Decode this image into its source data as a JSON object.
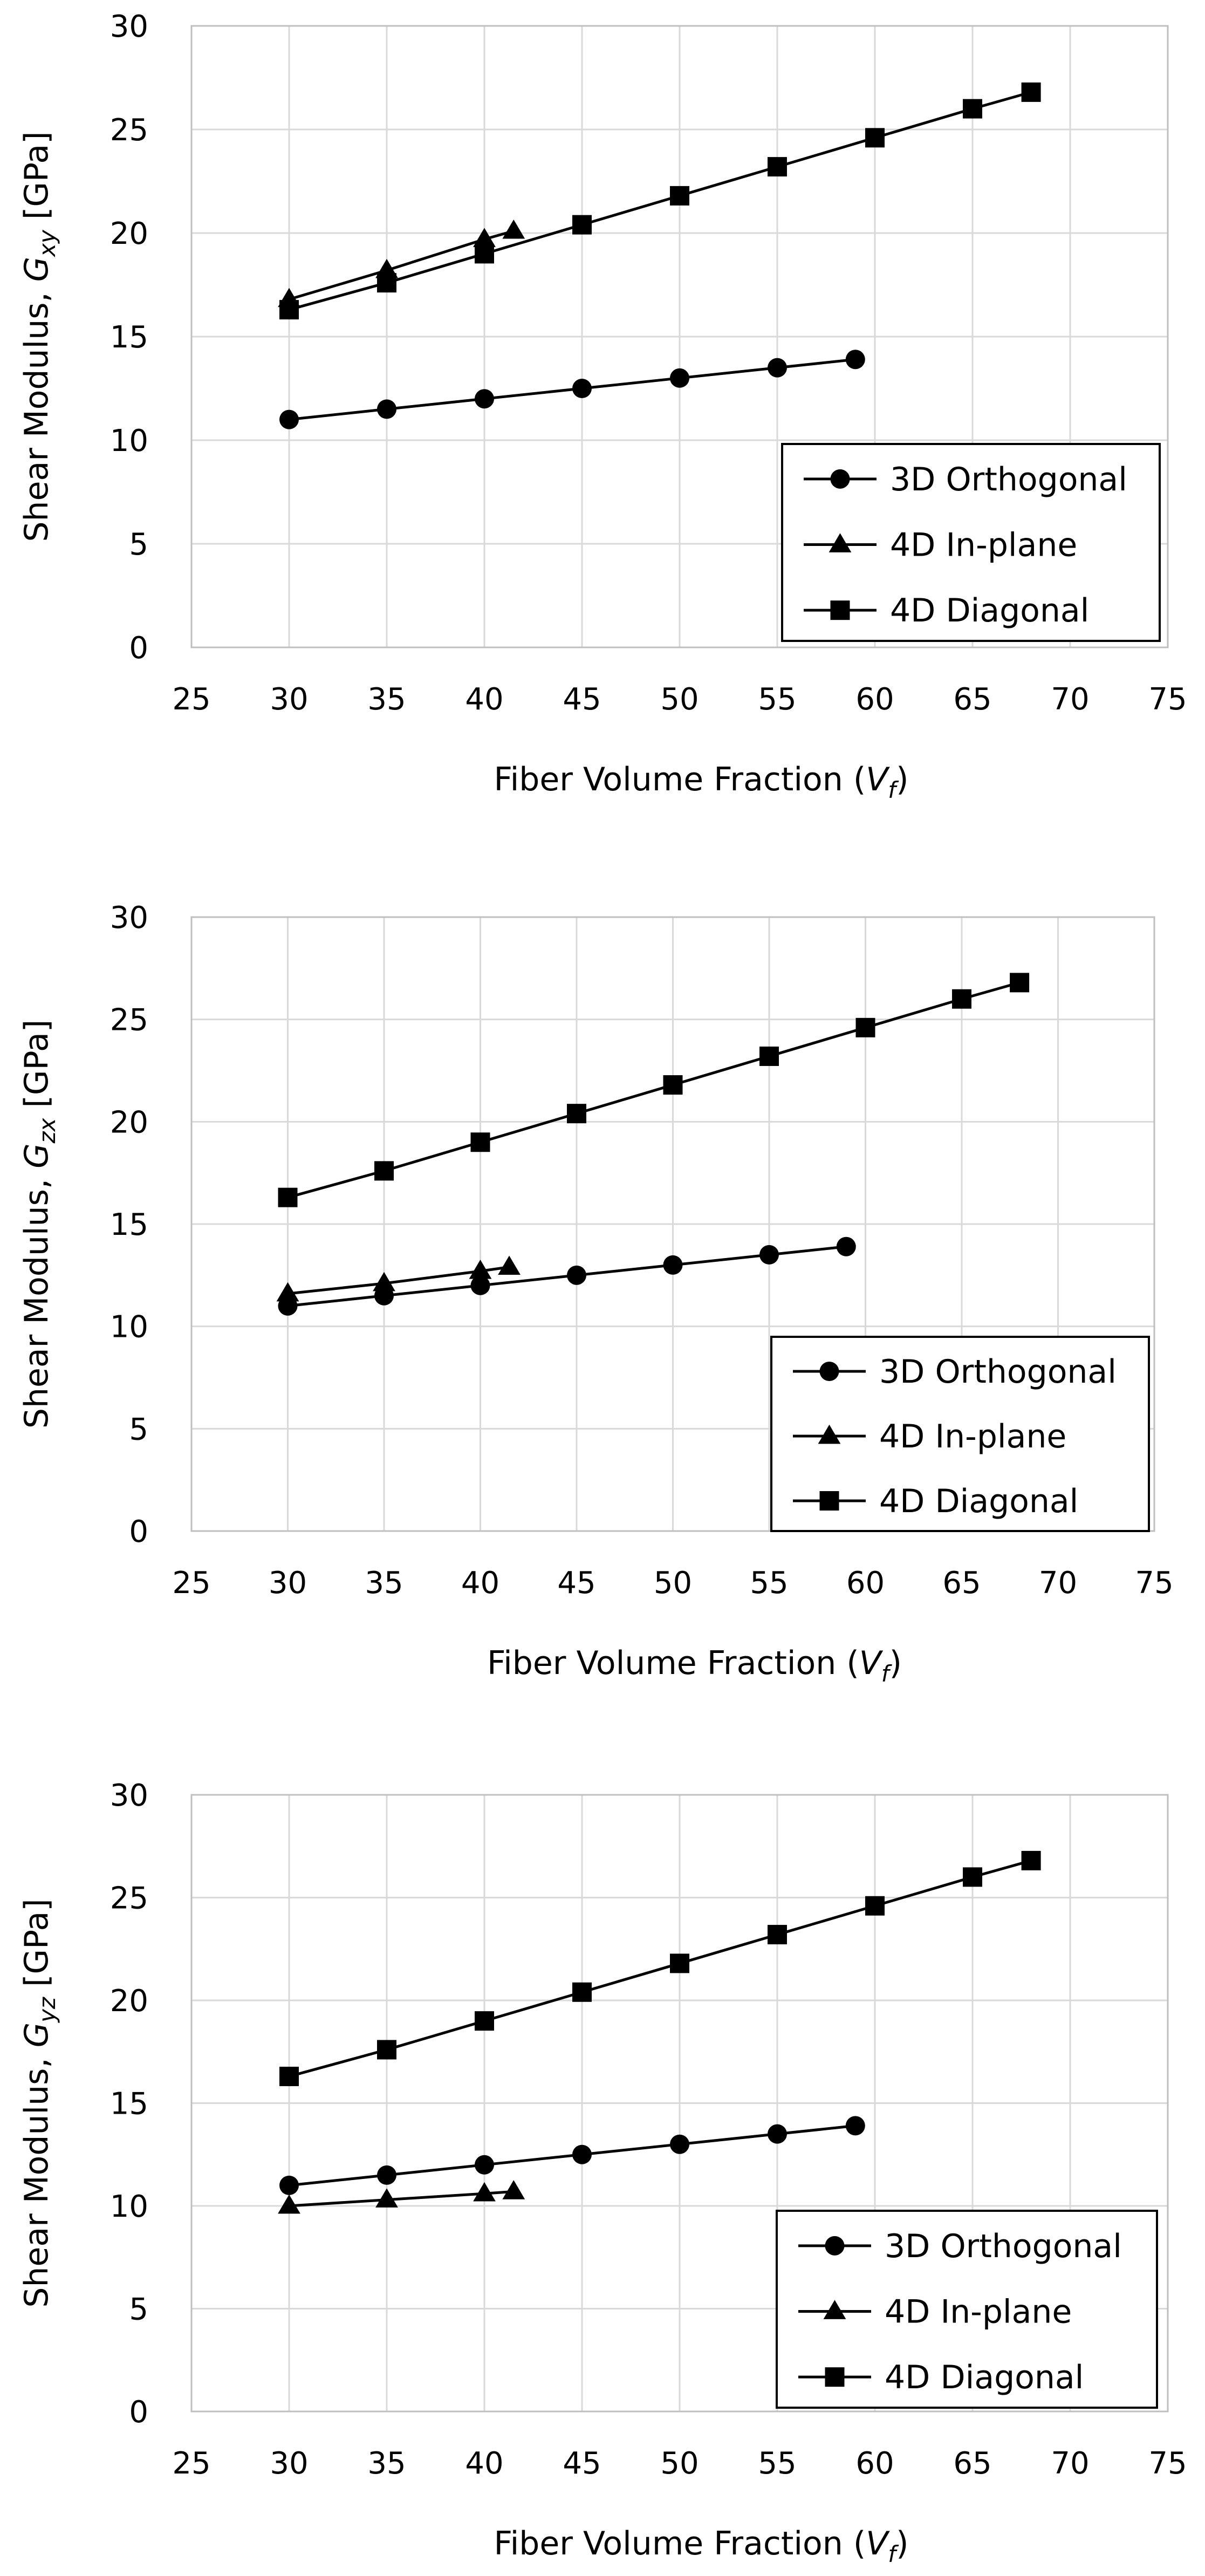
{
  "chart_data": [
    {
      "type": "line",
      "xlabel": "Fiber Volume Fraction (V_f)",
      "xlabel_parts": {
        "text": "Fiber Volume Fraction (",
        "var": "V",
        "sub": "f",
        "close": ")"
      },
      "ylabel": "Shear Modulus, G_xy [GPa]",
      "ylabel_parts": {
        "text": "Shear Modulus, ",
        "var": "G",
        "sub": "xy",
        "unit": " [GPa]"
      },
      "xlim": [
        25,
        75
      ],
      "ylim": [
        0,
        30
      ],
      "xticks": [
        "25",
        "30",
        "35",
        "40",
        "45",
        "50",
        "55",
        "60",
        "65",
        "70",
        "75"
      ],
      "yticks": [
        "0",
        "5",
        "10",
        "15",
        "20",
        "25",
        "30"
      ],
      "grid": true,
      "legend_position": "bottom-right",
      "series": [
        {
          "name": "3D Orthogonal",
          "marker": "circle",
          "x": [
            30,
            35,
            40,
            45,
            50,
            55,
            59
          ],
          "y": [
            11.0,
            11.5,
            12.0,
            12.5,
            13.0,
            13.5,
            13.9
          ]
        },
        {
          "name": "4D In-plane",
          "marker": "triangle",
          "x": [
            30,
            35,
            40,
            41.5
          ],
          "y": [
            16.8,
            18.2,
            19.7,
            20.1
          ]
        },
        {
          "name": "4D Diagonal",
          "marker": "square",
          "x": [
            30,
            35,
            40,
            45,
            50,
            55,
            60,
            65,
            68
          ],
          "y": [
            16.3,
            17.6,
            19.0,
            20.4,
            21.8,
            23.2,
            24.6,
            26.0,
            26.8
          ]
        }
      ]
    },
    {
      "type": "line",
      "xlabel": "Fiber Volume Fraction (V_f)",
      "xlabel_parts": {
        "text": "Fiber Volume Fraction (",
        "var": "V",
        "sub": "f",
        "close": ")"
      },
      "ylabel": "Shear Modulus, G_zx [GPa]",
      "ylabel_parts": {
        "text": "Shear Modulus, ",
        "var": "G",
        "sub": "zx",
        "unit": " [GPa]"
      },
      "xlim": [
        25,
        75
      ],
      "ylim": [
        0,
        30
      ],
      "xticks": [
        "25",
        "30",
        "35",
        "40",
        "45",
        "50",
        "55",
        "60",
        "65",
        "70",
        "75"
      ],
      "yticks": [
        "0",
        "5",
        "10",
        "15",
        "20",
        "25",
        "30"
      ],
      "grid": true,
      "legend_position": "bottom-right",
      "series": [
        {
          "name": "3D Orthogonal",
          "marker": "circle",
          "x": [
            30,
            35,
            40,
            45,
            50,
            55,
            59
          ],
          "y": [
            11.0,
            11.5,
            12.0,
            12.5,
            13.0,
            13.5,
            13.9
          ]
        },
        {
          "name": "4D In-plane",
          "marker": "triangle",
          "x": [
            30,
            35,
            40,
            41.5
          ],
          "y": [
            11.6,
            12.1,
            12.7,
            12.9
          ]
        },
        {
          "name": "4D Diagonal",
          "marker": "square",
          "x": [
            30,
            35,
            40,
            45,
            50,
            55,
            60,
            65,
            68
          ],
          "y": [
            16.3,
            17.6,
            19.0,
            20.4,
            21.8,
            23.2,
            24.6,
            26.0,
            26.8
          ]
        }
      ]
    },
    {
      "type": "line",
      "xlabel": "Fiber Volume Fraction (V_f)",
      "xlabel_parts": {
        "text": "Fiber Volume Fraction (",
        "var": "V",
        "sub": "f",
        "close": ")"
      },
      "ylabel": "Shear Modulus, G_yz [GPa]",
      "ylabel_parts": {
        "text": "Shear Modulus, ",
        "var": "G",
        "sub": "yz",
        "unit": " [GPa]"
      },
      "xlim": [
        25,
        75
      ],
      "ylim": [
        0,
        30
      ],
      "xticks": [
        "25",
        "30",
        "35",
        "40",
        "45",
        "50",
        "55",
        "60",
        "65",
        "70",
        "75"
      ],
      "yticks": [
        "0",
        "5",
        "10",
        "15",
        "20",
        "25",
        "30"
      ],
      "grid": true,
      "legend_position": "bottom-right",
      "series": [
        {
          "name": "3D Orthogonal",
          "marker": "circle",
          "x": [
            30,
            35,
            40,
            45,
            50,
            55,
            59
          ],
          "y": [
            11.0,
            11.5,
            12.0,
            12.5,
            13.0,
            13.5,
            13.9
          ]
        },
        {
          "name": "4D In-plane",
          "marker": "triangle",
          "x": [
            30,
            35,
            40,
            41.5
          ],
          "y": [
            10.0,
            10.3,
            10.6,
            10.7
          ]
        },
        {
          "name": "4D Diagonal",
          "marker": "square",
          "x": [
            30,
            35,
            40,
            45,
            50,
            55,
            60,
            65,
            68
          ],
          "y": [
            16.3,
            17.6,
            19.0,
            20.4,
            21.8,
            23.2,
            24.6,
            26.0,
            26.8
          ]
        }
      ]
    }
  ]
}
